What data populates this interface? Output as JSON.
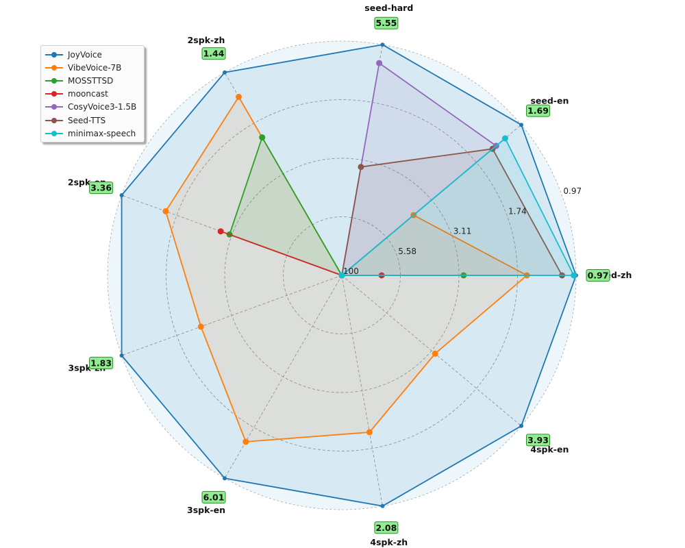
{
  "chart_data": {
    "type": "radar",
    "axes": [
      "seed-zh",
      "seed-en",
      "seed-hard",
      "2spk-zh",
      "2spk-en",
      "3spk-zh",
      "3spk-en",
      "4spk-zh",
      "4spk-en"
    ],
    "best_values": [
      "0.97",
      "1.69",
      "5.55",
      "1.44",
      "3.36",
      "1.83",
      "6.01",
      "2.08",
      "3.93"
    ],
    "ring_labels": [
      "100",
      "5.58",
      "3.11",
      "1.74",
      "0.97"
    ],
    "grid": true,
    "legend_position": "top-left",
    "series": [
      {
        "name": "JoyVoice",
        "color": "#1f77b4",
        "values": [
          1.0,
          1.0,
          1.0,
          1.0,
          1.0,
          1.0,
          1.0,
          1.0,
          1.0
        ]
      },
      {
        "name": "VibeVoice-7B",
        "color": "#ff7f0e",
        "values": [
          0.79,
          0.4,
          0.0,
          0.88,
          0.8,
          0.64,
          0.82,
          0.68,
          0.52
        ]
      },
      {
        "name": "MOSSTTSD",
        "color": "#2ca02c",
        "values": [
          0.52,
          0.0,
          0.0,
          0.68,
          0.51,
          0.0,
          0.0,
          0.0,
          0.0
        ]
      },
      {
        "name": "mooncast",
        "color": "#d62728",
        "values": [
          0.17,
          0.0,
          0.0,
          0.0,
          0.55,
          0.0,
          0.0,
          0.0,
          0.0
        ]
      },
      {
        "name": "CosyVoice3-1.5B",
        "color": "#9467bd",
        "values": [
          0.0,
          0.86,
          0.92,
          0.0,
          0.0,
          0.0,
          0.0,
          0.0,
          0.0
        ]
      },
      {
        "name": "Seed-TTS",
        "color": "#8c564b",
        "values": [
          0.94,
          0.84,
          0.47,
          0.0,
          0.0,
          0.0,
          0.0,
          0.0,
          0.0
        ]
      },
      {
        "name": "minimax-speech",
        "color": "#17becf",
        "values": [
          0.99,
          0.91,
          0.0,
          0.0,
          0.0,
          0.0,
          0.0,
          0.0,
          0.0
        ]
      }
    ]
  }
}
